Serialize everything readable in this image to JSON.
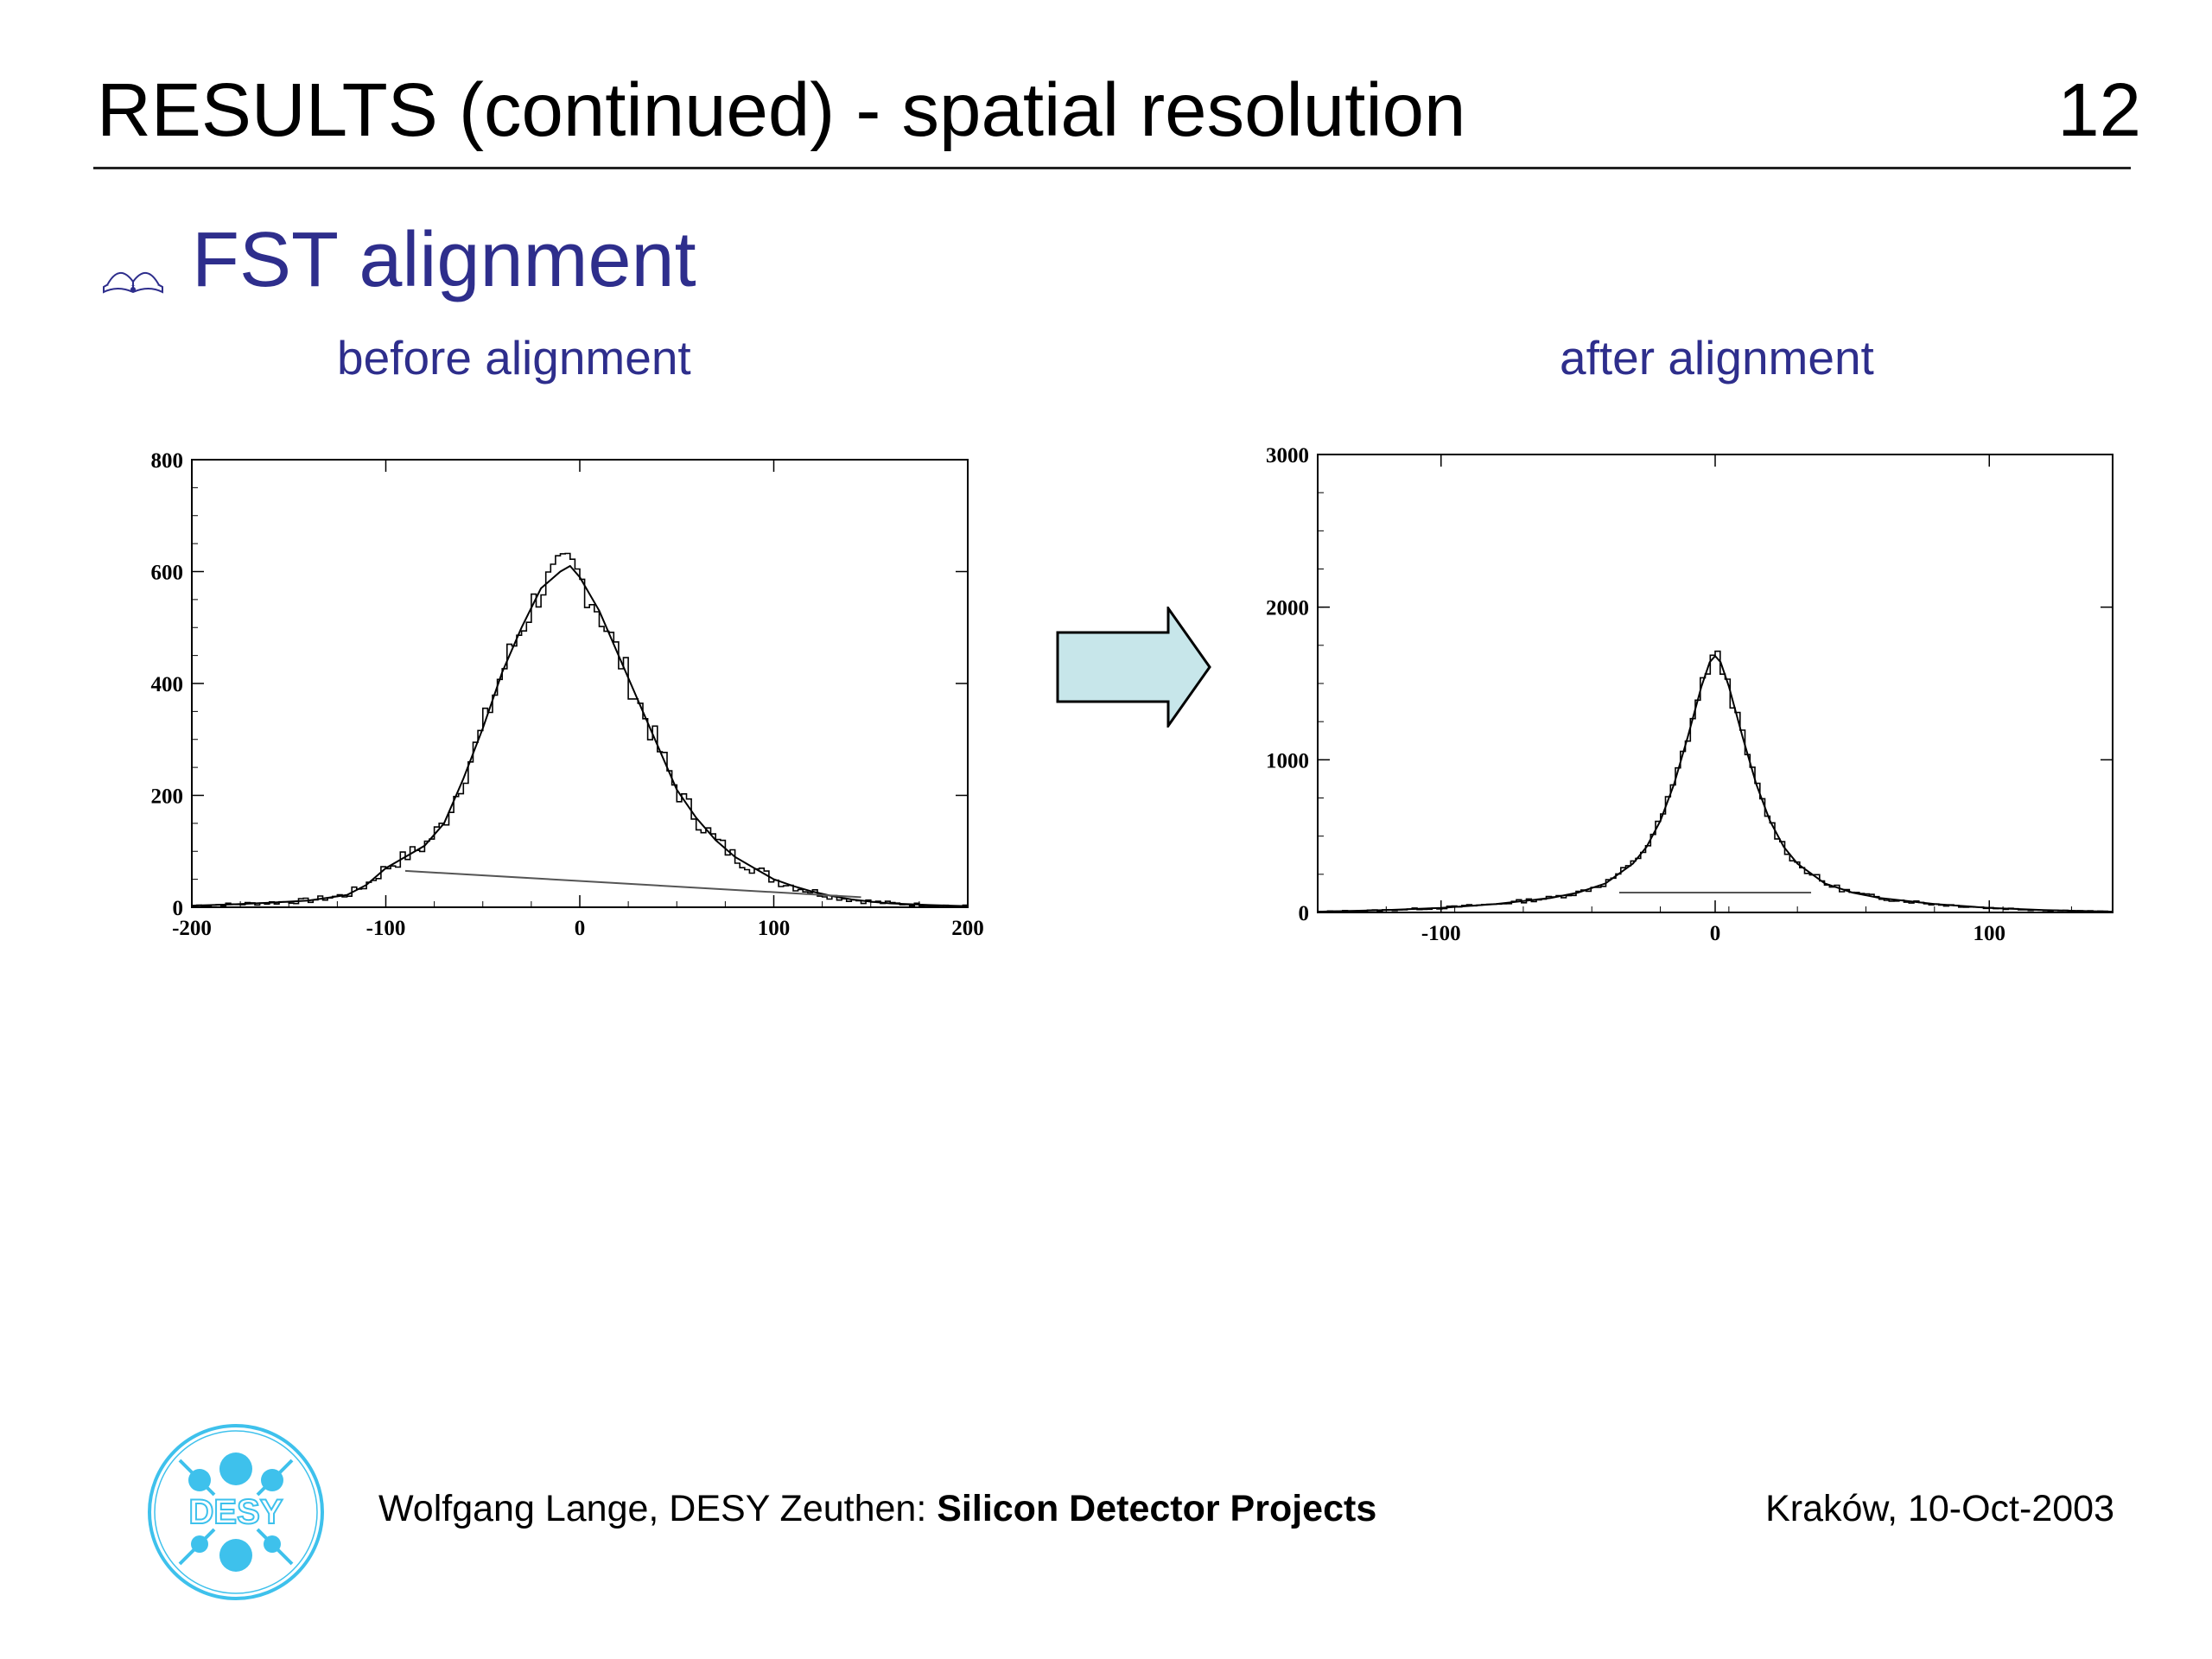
{
  "slide": {
    "title": "RESULTS (continued) - spatial resolution",
    "page_number": "12",
    "section_heading": "FST alignment",
    "bullet_icon": "open-book-icon",
    "arrow_icon": "right-arrow-icon",
    "arrow_color": "#c7e6ea",
    "heading_color": "#2e2e8c"
  },
  "footer": {
    "author_text": "Wolfgang Lange, DESY Zeuthen: ",
    "project_text": "Silicon Detector Projects",
    "date_text": "Kraków, 10-Oct-2003",
    "logo_text": "DESY",
    "logo_color": "#3ec1ec"
  },
  "chart_data": [
    {
      "type": "line",
      "caption": "before alignment",
      "xlim": [
        -200,
        200
      ],
      "ylim": [
        0,
        800
      ],
      "xticks": [
        -200,
        -100,
        0,
        100,
        200
      ],
      "yticks": [
        0,
        200,
        400,
        600,
        800
      ],
      "x": [
        -200,
        -180,
        -160,
        -140,
        -120,
        -110,
        -100,
        -90,
        -80,
        -70,
        -60,
        -50,
        -40,
        -30,
        -20,
        -10,
        -5,
        0,
        10,
        20,
        30,
        40,
        50,
        60,
        70,
        80,
        90,
        100,
        110,
        120,
        130,
        140,
        150,
        160,
        180,
        200
      ],
      "series": [
        {
          "values": [
            3,
            5,
            8,
            12,
            22,
            40,
            70,
            90,
            110,
            150,
            230,
            320,
            420,
            500,
            570,
            600,
            610,
            590,
            530,
            450,
            370,
            290,
            210,
            160,
            120,
            90,
            70,
            50,
            38,
            28,
            20,
            14,
            10,
            7,
            4,
            2
          ]
        }
      ],
      "background_line": {
        "x": [
          -90,
          145
        ],
        "y": [
          65,
          18
        ]
      }
    },
    {
      "type": "line",
      "caption": "after alignment",
      "xlim": [
        -145,
        145
      ],
      "ylim": [
        0,
        3000
      ],
      "xticks": [
        -100,
        0,
        100
      ],
      "yticks": [
        0,
        1000,
        2000,
        3000
      ],
      "x": [
        -145,
        -120,
        -100,
        -80,
        -60,
        -50,
        -40,
        -30,
        -25,
        -20,
        -15,
        -10,
        -5,
        -2,
        0,
        2,
        5,
        10,
        15,
        20,
        25,
        30,
        40,
        50,
        60,
        80,
        100,
        120,
        145
      ],
      "series": [
        {
          "values": [
            5,
            15,
            30,
            55,
            95,
            130,
            190,
            320,
            430,
            600,
            840,
            1150,
            1480,
            1640,
            1680,
            1640,
            1480,
            1150,
            840,
            600,
            430,
            320,
            190,
            130,
            95,
            55,
            30,
            15,
            5
          ]
        }
      ],
      "background_line": {
        "x": [
          -35,
          35
        ],
        "y": [
          130,
          130
        ]
      }
    }
  ]
}
